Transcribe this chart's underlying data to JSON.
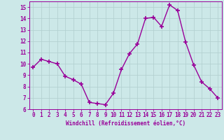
{
  "x": [
    0,
    1,
    2,
    3,
    4,
    5,
    6,
    7,
    8,
    9,
    10,
    11,
    12,
    13,
    14,
    15,
    16,
    17,
    18,
    19,
    20,
    21,
    22,
    23
  ],
  "y": [
    9.7,
    10.4,
    10.2,
    10.0,
    8.9,
    8.6,
    8.2,
    6.6,
    6.5,
    6.4,
    7.4,
    9.5,
    10.9,
    11.75,
    14.0,
    14.1,
    13.3,
    15.2,
    14.7,
    11.9,
    9.9,
    8.4,
    7.8,
    7.0
  ],
  "line_color": "#990099",
  "marker_color": "#990099",
  "bg_color": "#cce8e8",
  "grid_color": "#b0cece",
  "xlabel": "Windchill (Refroidissement éolien,°C)",
  "ylim": [
    6,
    15.5
  ],
  "yticks": [
    6,
    7,
    8,
    9,
    10,
    11,
    12,
    13,
    14,
    15
  ],
  "xticks": [
    0,
    1,
    2,
    3,
    4,
    5,
    6,
    7,
    8,
    9,
    10,
    11,
    12,
    13,
    14,
    15,
    16,
    17,
    18,
    19,
    20,
    21,
    22,
    23
  ],
  "font_color": "#990099",
  "tick_fontsize": 5.5,
  "xlabel_fontsize": 5.5,
  "marker_size": 4,
  "line_width": 1.0
}
